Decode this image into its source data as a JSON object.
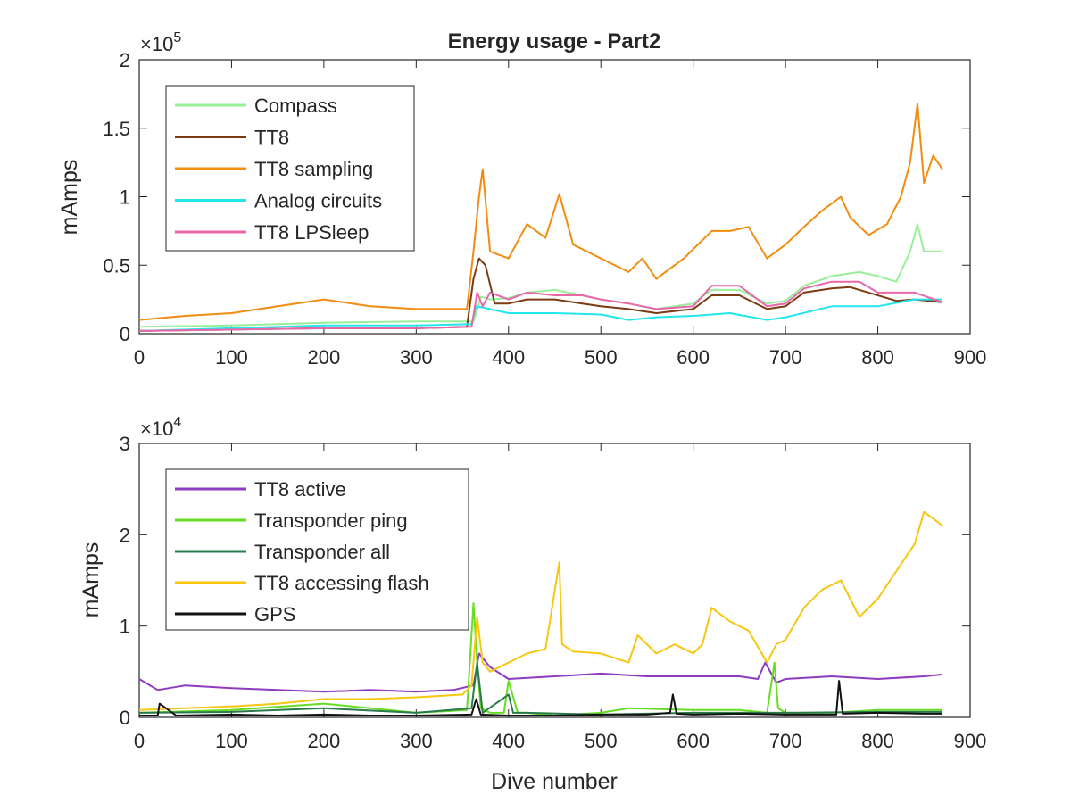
{
  "window": {
    "title": "Energy usage - Part2"
  },
  "chart_data": [
    {
      "type": "line",
      "title": "Energy usage - Part2",
      "xlabel": "",
      "ylabel": "mAmps",
      "exponent_label": "×10",
      "exponent_power": "5",
      "xlim": [
        0,
        900
      ],
      "ylim": [
        0,
        2
      ],
      "y_multiplier": 100000,
      "xticks": [
        "0",
        "100",
        "200",
        "300",
        "400",
        "500",
        "600",
        "700",
        "800",
        "900"
      ],
      "yticks": [
        "0",
        "0.5",
        "1",
        "1.5",
        "2"
      ],
      "ytick_values": [
        0,
        0.5,
        1,
        1.5,
        2
      ],
      "grid": false,
      "legend_position": "top-left",
      "series": [
        {
          "name": "Compass",
          "color": "#99ee99",
          "x": [
            0,
            100,
            200,
            300,
            350,
            362,
            365,
            370,
            380,
            400,
            420,
            450,
            480,
            500,
            530,
            560,
            600,
            620,
            650,
            680,
            700,
            720,
            750,
            780,
            800,
            820,
            835,
            843,
            850,
            870
          ],
          "y": [
            0.05,
            0.06,
            0.08,
            0.09,
            0.09,
            0.09,
            0.15,
            0.27,
            0.25,
            0.26,
            0.3,
            0.32,
            0.28,
            0.25,
            0.22,
            0.18,
            0.22,
            0.32,
            0.32,
            0.22,
            0.24,
            0.35,
            0.42,
            0.45,
            0.42,
            0.38,
            0.6,
            0.8,
            0.6,
            0.6
          ]
        },
        {
          "name": "TT8",
          "color": "#7a3b12",
          "x": [
            0,
            100,
            200,
            300,
            355,
            362,
            368,
            375,
            385,
            400,
            420,
            450,
            480,
            500,
            530,
            560,
            600,
            620,
            650,
            680,
            700,
            720,
            750,
            770,
            790,
            820,
            840,
            870
          ],
          "y": [
            0.02,
            0.03,
            0.04,
            0.04,
            0.05,
            0.4,
            0.55,
            0.5,
            0.22,
            0.22,
            0.25,
            0.25,
            0.22,
            0.2,
            0.18,
            0.15,
            0.18,
            0.28,
            0.28,
            0.18,
            0.2,
            0.3,
            0.33,
            0.34,
            0.3,
            0.24,
            0.25,
            0.23
          ]
        },
        {
          "name": "TT8 sampling",
          "color": "#f28c10",
          "x": [
            0,
            50,
            100,
            150,
            200,
            250,
            300,
            355,
            362,
            368,
            372,
            380,
            400,
            420,
            440,
            455,
            470,
            500,
            530,
            545,
            560,
            590,
            620,
            640,
            660,
            680,
            700,
            720,
            740,
            760,
            770,
            790,
            810,
            825,
            835,
            843,
            850,
            860,
            870
          ],
          "y": [
            0.1,
            0.13,
            0.15,
            0.2,
            0.25,
            0.2,
            0.18,
            0.18,
            0.6,
            1.0,
            1.2,
            0.6,
            0.55,
            0.8,
            0.7,
            1.02,
            0.65,
            0.55,
            0.45,
            0.55,
            0.4,
            0.55,
            0.75,
            0.75,
            0.78,
            0.55,
            0.65,
            0.78,
            0.9,
            1.0,
            0.85,
            0.72,
            0.8,
            1.0,
            1.25,
            1.68,
            1.1,
            1.3,
            1.2
          ]
        },
        {
          "name": "Analog circuits",
          "color": "#22e5ee",
          "x": [
            0,
            100,
            200,
            300,
            360,
            365,
            380,
            400,
            450,
            500,
            530,
            560,
            600,
            640,
            680,
            700,
            750,
            800,
            840,
            870
          ],
          "y": [
            0.02,
            0.04,
            0.06,
            0.06,
            0.07,
            0.2,
            0.18,
            0.15,
            0.15,
            0.14,
            0.1,
            0.12,
            0.13,
            0.15,
            0.1,
            0.12,
            0.2,
            0.2,
            0.25,
            0.25
          ]
        },
        {
          "name": "TT8 LPSleep",
          "color": "#e867a8",
          "x": [
            0,
            100,
            200,
            300,
            360,
            366,
            372,
            380,
            400,
            420,
            450,
            480,
            500,
            530,
            560,
            600,
            620,
            650,
            680,
            700,
            720,
            750,
            780,
            800,
            840,
            870
          ],
          "y": [
            0.02,
            0.03,
            0.04,
            0.04,
            0.05,
            0.3,
            0.2,
            0.3,
            0.25,
            0.3,
            0.28,
            0.28,
            0.25,
            0.22,
            0.18,
            0.2,
            0.35,
            0.35,
            0.2,
            0.22,
            0.33,
            0.38,
            0.38,
            0.3,
            0.3,
            0.23
          ]
        }
      ]
    },
    {
      "type": "line",
      "title": "",
      "xlabel": "Dive number",
      "ylabel": "mAmps",
      "exponent_label": "×10",
      "exponent_power": "4",
      "xlim": [
        0,
        900
      ],
      "ylim": [
        0,
        3
      ],
      "y_multiplier": 10000,
      "xticks": [
        "0",
        "100",
        "200",
        "300",
        "400",
        "500",
        "600",
        "700",
        "800",
        "900"
      ],
      "yticks": [
        "0",
        "1",
        "2",
        "3"
      ],
      "ytick_values": [
        0,
        1,
        2,
        3
      ],
      "grid": false,
      "legend_position": "top-left",
      "series": [
        {
          "name": "TT8 active",
          "color": "#8e3bbf",
          "x": [
            0,
            20,
            50,
            100,
            150,
            200,
            250,
            300,
            340,
            362,
            368,
            380,
            400,
            450,
            500,
            550,
            600,
            650,
            670,
            678,
            690,
            700,
            750,
            800,
            850,
            870
          ],
          "y": [
            0.42,
            0.3,
            0.35,
            0.32,
            0.3,
            0.28,
            0.3,
            0.28,
            0.3,
            0.35,
            0.7,
            0.55,
            0.42,
            0.45,
            0.48,
            0.45,
            0.45,
            0.45,
            0.42,
            0.6,
            0.38,
            0.42,
            0.45,
            0.42,
            0.45,
            0.47
          ]
        },
        {
          "name": "Transponder ping",
          "color": "#66dd22",
          "x": [
            0,
            100,
            200,
            300,
            355,
            362,
            366,
            370,
            380,
            395,
            400,
            410,
            420,
            450,
            500,
            530,
            600,
            650,
            680,
            688,
            692,
            700,
            750,
            800,
            870
          ],
          "y": [
            0.05,
            0.08,
            0.15,
            0.05,
            0.08,
            1.25,
            0.6,
            0.1,
            0.05,
            0.05,
            0.4,
            0.05,
            0.05,
            0.02,
            0.05,
            0.1,
            0.08,
            0.08,
            0.05,
            0.6,
            0.1,
            0.05,
            0.05,
            0.08,
            0.08
          ]
        },
        {
          "name": "Transponder all",
          "color": "#2a7a4a",
          "x": [
            0,
            100,
            200,
            300,
            360,
            366,
            372,
            400,
            405,
            420,
            500,
            600,
            700,
            800,
            870
          ],
          "y": [
            0.05,
            0.06,
            0.1,
            0.05,
            0.1,
            0.6,
            0.05,
            0.25,
            0.05,
            0.05,
            0.03,
            0.05,
            0.05,
            0.06,
            0.06
          ]
        },
        {
          "name": "TT8 accessing flash",
          "color": "#f7c60f",
          "x": [
            0,
            50,
            100,
            150,
            200,
            250,
            300,
            350,
            360,
            366,
            372,
            380,
            400,
            420,
            440,
            455,
            458,
            470,
            500,
            530,
            540,
            560,
            580,
            600,
            610,
            620,
            640,
            660,
            680,
            690,
            700,
            720,
            740,
            760,
            780,
            800,
            820,
            840,
            850,
            870
          ],
          "y": [
            0.08,
            0.1,
            0.12,
            0.15,
            0.2,
            0.2,
            0.22,
            0.25,
            0.35,
            1.1,
            0.6,
            0.5,
            0.6,
            0.7,
            0.75,
            1.7,
            0.8,
            0.72,
            0.7,
            0.6,
            0.9,
            0.7,
            0.8,
            0.7,
            0.8,
            1.2,
            1.05,
            0.95,
            0.6,
            0.8,
            0.85,
            1.2,
            1.4,
            1.5,
            1.1,
            1.3,
            1.6,
            1.9,
            2.25,
            2.1
          ]
        },
        {
          "name": "GPS",
          "color": "#111111",
          "x": [
            0,
            20,
            22,
            40,
            100,
            150,
            200,
            250,
            300,
            360,
            365,
            370,
            400,
            450,
            500,
            550,
            575,
            578,
            582,
            600,
            650,
            700,
            755,
            758,
            762,
            800,
            850,
            870
          ],
          "y": [
            0.02,
            0.02,
            0.15,
            0.02,
            0.03,
            0.02,
            0.03,
            0.02,
            0.02,
            0.03,
            0.2,
            0.03,
            0.02,
            0.02,
            0.03,
            0.03,
            0.05,
            0.25,
            0.04,
            0.03,
            0.04,
            0.03,
            0.03,
            0.4,
            0.04,
            0.05,
            0.04,
            0.04
          ]
        }
      ]
    }
  ]
}
